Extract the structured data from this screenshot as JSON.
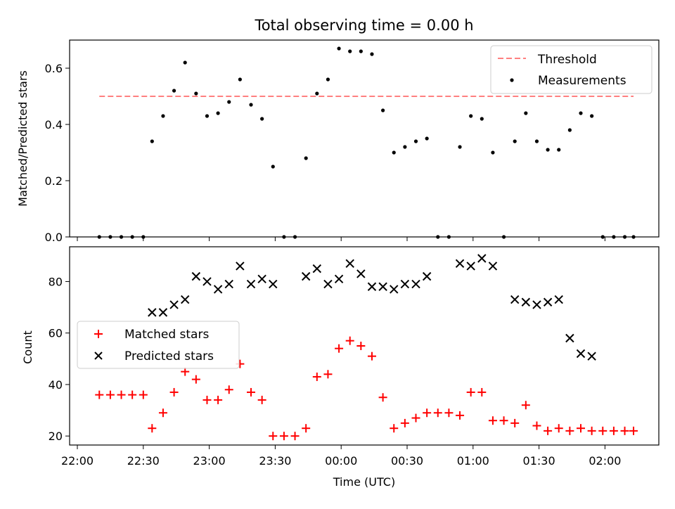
{
  "title": "Total observing time = 0.00 h",
  "chart_data": [
    {
      "type": "scatter",
      "ylabel": "Matched/Predicted stars",
      "xlabel": "",
      "ylim": [
        0,
        0.7
      ],
      "yticks": [
        "0.0",
        "0.2",
        "0.4",
        "0.6"
      ],
      "ytick_values": [
        0,
        0.2,
        0.4,
        0.6
      ],
      "legend_placement": "top-right",
      "threshold": {
        "name": "Threshold",
        "value": 0.5,
        "x_start": "22:10",
        "x_end": "02:13",
        "color": "#ff8080"
      },
      "series": [
        {
          "name": "Measurements",
          "color": "#000000",
          "x": [
            "22:10",
            "22:15",
            "22:20",
            "22:25",
            "22:30",
            "22:34",
            "22:39",
            "22:44",
            "22:49",
            "22:54",
            "22:59",
            "23:04",
            "23:09",
            "23:14",
            "23:19",
            "23:24",
            "23:29",
            "23:34",
            "23:39",
            "23:44",
            "23:49",
            "23:54",
            "23:59",
            "00:04",
            "00:09",
            "00:14",
            "00:19",
            "00:24",
            "00:29",
            "00:34",
            "00:39",
            "00:44",
            "00:49",
            "00:54",
            "00:59",
            "01:04",
            "01:09",
            "01:14",
            "01:19",
            "01:24",
            "01:29",
            "01:34",
            "01:39",
            "01:44",
            "01:49",
            "01:54",
            "01:59",
            "02:04",
            "02:09",
            "02:13"
          ],
          "y": [
            0,
            0,
            0,
            0,
            0,
            0.34,
            0.43,
            0.52,
            0.62,
            0.51,
            0.43,
            0.44,
            0.48,
            0.56,
            0.47,
            0.42,
            0.25,
            0,
            0,
            0.28,
            0.51,
            0.56,
            0.67,
            0.66,
            0.66,
            0.65,
            0.45,
            0.3,
            0.32,
            0.34,
            0.35,
            0,
            0,
            0.32,
            0.43,
            0.42,
            0.3,
            0,
            0.34,
            0.44,
            0.34,
            0.31,
            0.31,
            0.38,
            0.44,
            0.43,
            0,
            0,
            0,
            0
          ]
        }
      ]
    },
    {
      "type": "scatter",
      "ylabel": "Count",
      "xlabel": "Time (UTC)",
      "ylim": [
        16.5,
        93.5
      ],
      "yticks": [
        "20",
        "40",
        "60",
        "80"
      ],
      "ytick_values": [
        20,
        40,
        60,
        80
      ],
      "xticks": [
        "22:00",
        "22:30",
        "23:00",
        "23:30",
        "00:00",
        "00:30",
        "01:00",
        "01:30",
        "02:00"
      ],
      "legend_placement": "center-left",
      "series": [
        {
          "name": "Matched stars",
          "color": "#ff0000",
          "marker": "plus",
          "x": [
            "22:10",
            "22:15",
            "22:20",
            "22:25",
            "22:30",
            "22:34",
            "22:39",
            "22:44",
            "22:49",
            "22:54",
            "22:59",
            "23:04",
            "23:09",
            "23:14",
            "23:19",
            "23:24",
            "23:29",
            "23:34",
            "23:39",
            "23:44",
            "23:49",
            "23:54",
            "23:59",
            "00:04",
            "00:09",
            "00:14",
            "00:19",
            "00:24",
            "00:29",
            "00:34",
            "00:39",
            "00:44",
            "00:49",
            "00:54",
            "00:59",
            "01:04",
            "01:09",
            "01:14",
            "01:19",
            "01:24",
            "01:29",
            "01:34",
            "01:39",
            "01:44",
            "01:49",
            "01:54",
            "01:59",
            "02:04",
            "02:09",
            "02:13"
          ],
          "y": [
            36,
            36,
            36,
            36,
            36,
            23,
            29,
            37,
            45,
            42,
            34,
            34,
            38,
            48,
            37,
            34,
            20,
            20,
            20,
            23,
            43,
            44,
            54,
            57,
            55,
            51,
            35,
            23,
            25,
            27,
            29,
            29,
            29,
            28,
            37,
            37,
            26,
            26,
            25,
            32,
            24,
            22,
            23,
            22,
            23,
            22,
            22,
            22,
            22,
            22
          ]
        },
        {
          "name": "Predicted stars",
          "color": "#000000",
          "marker": "x",
          "x": [
            "22:34",
            "22:39",
            "22:44",
            "22:49",
            "22:54",
            "22:59",
            "23:04",
            "23:09",
            "23:14",
            "23:19",
            "23:24",
            "23:29",
            "23:44",
            "23:49",
            "23:54",
            "23:59",
            "00:04",
            "00:09",
            "00:14",
            "00:19",
            "00:24",
            "00:29",
            "00:34",
            "00:39",
            "00:54",
            "00:59",
            "01:04",
            "01:09",
            "01:19",
            "01:24",
            "01:29",
            "01:34",
            "01:39",
            "01:44",
            "01:49",
            "01:54"
          ],
          "y": [
            68,
            68,
            71,
            73,
            82,
            80,
            77,
            79,
            86,
            79,
            81,
            79,
            82,
            85,
            79,
            81,
            87,
            83,
            78,
            78,
            77,
            79,
            79,
            82,
            87,
            86,
            89,
            86,
            73,
            72,
            71,
            72,
            73,
            58,
            52,
            51
          ]
        }
      ]
    }
  ]
}
